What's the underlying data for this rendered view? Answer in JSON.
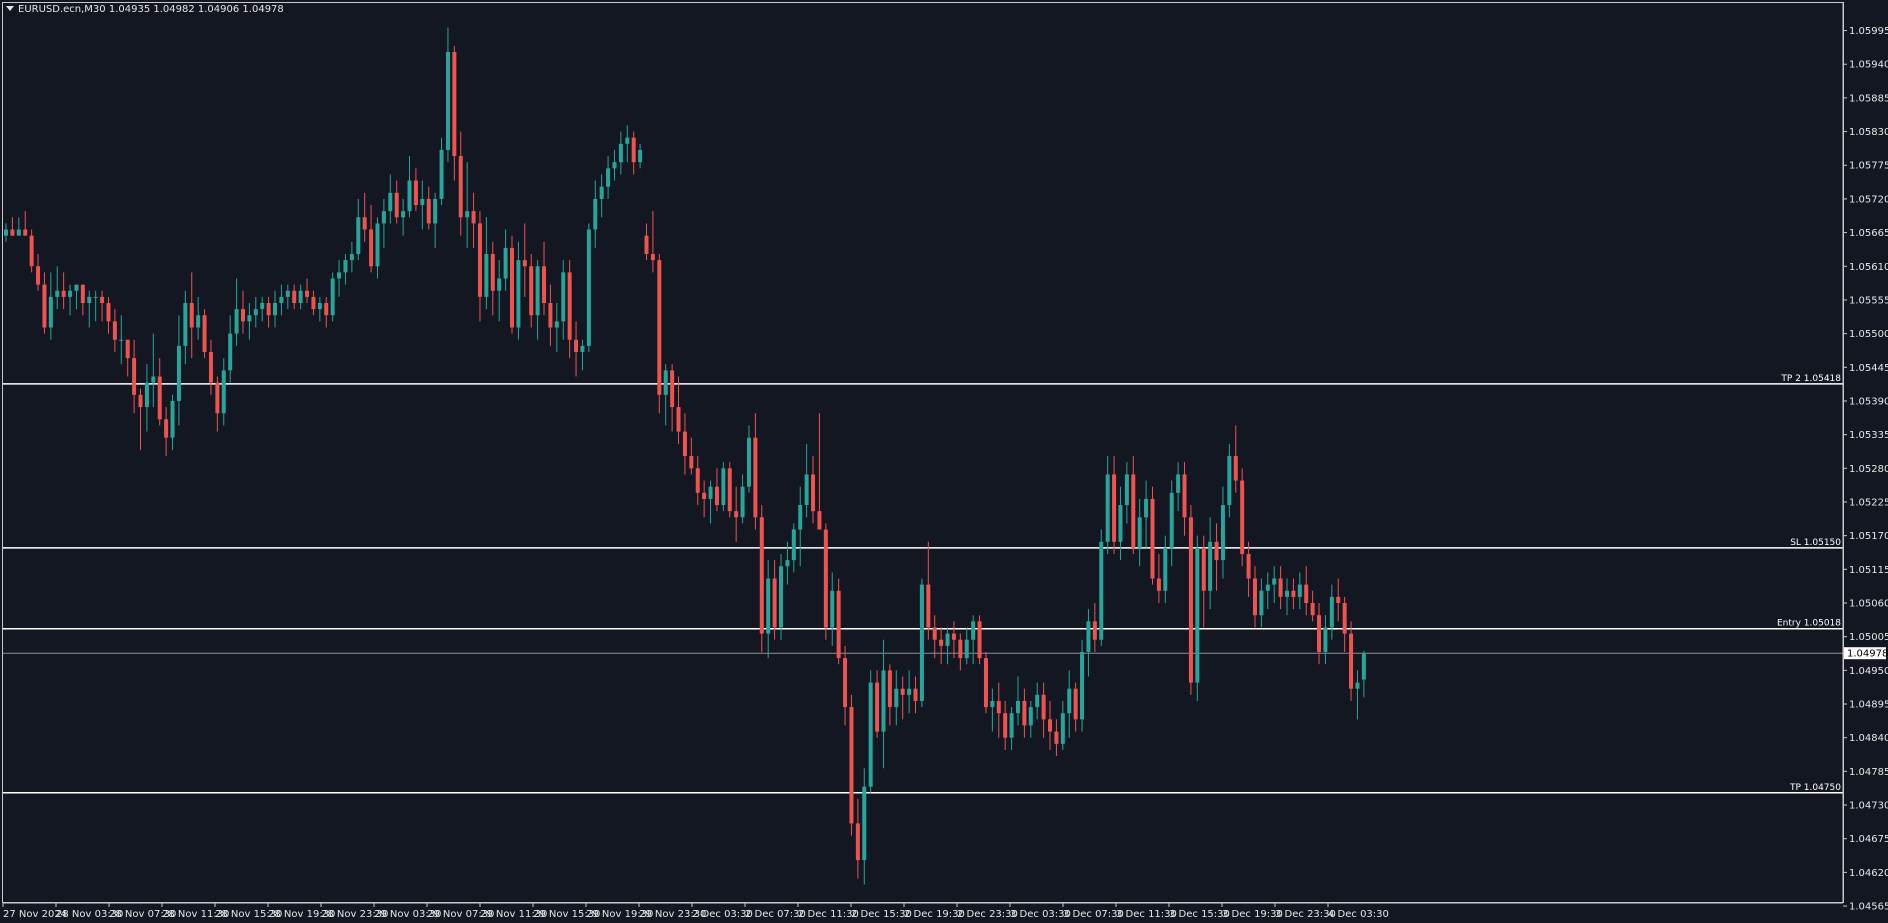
{
  "header": {
    "symbol_line": "EURUSD.ecn,M30  1.04935 1.04982 1.04906 1.04978"
  },
  "chart_data": {
    "type": "candlestick",
    "symbol": "EURUSD.ecn",
    "timeframe": "M30",
    "ohlc_readout": [
      "1.04935",
      "1.04982",
      "1.04906",
      "1.04978"
    ],
    "current_price": "1.04978",
    "ylim": [
      1.0457,
      1.0604
    ],
    "y_ticks": [
      "1.05995",
      "1.05940",
      "1.05885",
      "1.05830",
      "1.05775",
      "1.05720",
      "1.05665",
      "1.05610",
      "1.05555",
      "1.05500",
      "1.05445",
      "1.05390",
      "1.05335",
      "1.05280",
      "1.05225",
      "1.05170",
      "1.05115",
      "1.05060",
      "1.05005",
      "1.04950",
      "1.04895",
      "1.04840",
      "1.04785",
      "1.04730",
      "1.04675",
      "1.04620",
      "1.04565"
    ],
    "x_labels": [
      "27 Nov 2024",
      "28 Nov 03:30",
      "28 Nov 07:30",
      "28 Nov 11:30",
      "28 Nov 15:30",
      "28 Nov 19:30",
      "28 Nov 23:30",
      "29 Nov 03:30",
      "29 Nov 07:30",
      "29 Nov 11:30",
      "29 Nov 15:30",
      "29 Nov 19:30",
      "29 Nov 23:30",
      "2 Dec 03:30",
      "2 Dec 07:30",
      "2 Dec 11:30",
      "2 Dec 15:30",
      "2 Dec 19:30",
      "2 Dec 23:30",
      "3 Dec 03:30",
      "3 Dec 07:30",
      "3 Dec 11:30",
      "3 Dec 15:30",
      "3 Dec 19:30",
      "3 Dec 23:30",
      "4 Dec 03:30"
    ],
    "levels": [
      {
        "label": "TP 2 1.05418",
        "price": 1.05418
      },
      {
        "label": "SL 1.05150",
        "price": 1.0515
      },
      {
        "label": "Entry 1.05018",
        "price": 1.05018
      },
      {
        "label": "TP 1.04750",
        "price": 1.0475
      }
    ],
    "colors": {
      "background": "#131722",
      "bull": "#26a69a",
      "bear": "#ef5350",
      "axis": "#c8c8c8",
      "text": "#e6e6e6",
      "level_line": "#ffffff",
      "price_line": "#8a8f99"
    },
    "candles": [
      [
        1.0566,
        1.0568,
        1.0565,
        1.0567
      ],
      [
        1.0567,
        1.0569,
        1.0566,
        1.0566
      ],
      [
        1.0566,
        1.0569,
        1.0566,
        1.0567
      ],
      [
        1.0567,
        1.057,
        1.0566,
        1.0566
      ],
      [
        1.0566,
        1.0567,
        1.056,
        1.0561
      ],
      [
        1.0561,
        1.0563,
        1.0557,
        1.0558
      ],
      [
        1.0558,
        1.056,
        1.055,
        1.0551
      ],
      [
        1.0551,
        1.056,
        1.0549,
        1.0556
      ],
      [
        1.0556,
        1.0561,
        1.0554,
        1.0557
      ],
      [
        1.0557,
        1.056,
        1.0554,
        1.0556
      ],
      [
        1.0556,
        1.0558,
        1.0553,
        1.0557
      ],
      [
        1.0557,
        1.0558,
        1.0554,
        1.0558
      ],
      [
        1.0558,
        1.0558,
        1.0553,
        1.0555
      ],
      [
        1.0555,
        1.0557,
        1.0551,
        1.0556
      ],
      [
        1.0556,
        1.0557,
        1.0552,
        1.0556
      ],
      [
        1.0556,
        1.0557,
        1.0552,
        1.0555
      ],
      [
        1.0555,
        1.0556,
        1.055,
        1.0552
      ],
      [
        1.0552,
        1.0554,
        1.0547,
        1.0549
      ],
      [
        1.0549,
        1.0553,
        1.0545,
        1.0549
      ],
      [
        1.0549,
        1.0549,
        1.0543,
        1.0546
      ],
      [
        1.0546,
        1.0549,
        1.0537,
        1.054
      ],
      [
        1.054,
        1.0541,
        1.0531,
        1.0538
      ],
      [
        1.0538,
        1.0545,
        1.0534,
        1.0542
      ],
      [
        1.0542,
        1.055,
        1.0538,
        1.0543
      ],
      [
        1.0543,
        1.0546,
        1.0535,
        1.0536
      ],
      [
        1.0536,
        1.0538,
        1.053,
        1.0533
      ],
      [
        1.0533,
        1.054,
        1.0531,
        1.0539
      ],
      [
        1.0539,
        1.0553,
        1.0535,
        1.0548
      ],
      [
        1.0548,
        1.0557,
        1.0545,
        1.0555
      ],
      [
        1.0555,
        1.056,
        1.0546,
        1.0551
      ],
      [
        1.0551,
        1.0556,
        1.0549,
        1.0553
      ],
      [
        1.0553,
        1.0554,
        1.0546,
        1.0547
      ],
      [
        1.0547,
        1.0549,
        1.054,
        1.0542
      ],
      [
        1.0542,
        1.0543,
        1.0534,
        1.0537
      ],
      [
        1.0537,
        1.0546,
        1.0535,
        1.0544
      ],
      [
        1.0544,
        1.0553,
        1.0542,
        1.055
      ],
      [
        1.055,
        1.0559,
        1.0548,
        1.0554
      ],
      [
        1.0554,
        1.0557,
        1.055,
        1.0552
      ],
      [
        1.0552,
        1.0555,
        1.0549,
        1.0553
      ],
      [
        1.0553,
        1.0556,
        1.0551,
        1.0554
      ],
      [
        1.0554,
        1.0556,
        1.0552,
        1.0555
      ],
      [
        1.0555,
        1.0556,
        1.0551,
        1.0553
      ],
      [
        1.0553,
        1.0557,
        1.0551,
        1.0555
      ],
      [
        1.0555,
        1.0558,
        1.0553,
        1.0556
      ],
      [
        1.0556,
        1.0558,
        1.0554,
        1.0557
      ],
      [
        1.0557,
        1.0558,
        1.0554,
        1.0555
      ],
      [
        1.0555,
        1.0558,
        1.0554,
        1.0557
      ],
      [
        1.0557,
        1.0559,
        1.0555,
        1.0556
      ],
      [
        1.0556,
        1.0557,
        1.0553,
        1.0554
      ],
      [
        1.0554,
        1.0556,
        1.0552,
        1.0555
      ],
      [
        1.0555,
        1.0556,
        1.0551,
        1.0553
      ],
      [
        1.0553,
        1.056,
        1.0552,
        1.0559
      ],
      [
        1.0559,
        1.0562,
        1.0556,
        1.056
      ],
      [
        1.056,
        1.0563,
        1.0558,
        1.0562
      ],
      [
        1.0562,
        1.0565,
        1.056,
        1.0563
      ],
      [
        1.0563,
        1.0572,
        1.0562,
        1.0569
      ],
      [
        1.0569,
        1.0573,
        1.0565,
        1.0567
      ],
      [
        1.0567,
        1.0571,
        1.056,
        1.0561
      ],
      [
        1.0561,
        1.0569,
        1.0559,
        1.0568
      ],
      [
        1.0568,
        1.0572,
        1.0564,
        1.057
      ],
      [
        1.057,
        1.0576,
        1.0568,
        1.0573
      ],
      [
        1.0573,
        1.0575,
        1.0568,
        1.0569
      ],
      [
        1.0569,
        1.0572,
        1.0566,
        1.057
      ],
      [
        1.057,
        1.0579,
        1.0569,
        1.0575
      ],
      [
        1.0575,
        1.0577,
        1.057,
        1.0571
      ],
      [
        1.0571,
        1.0575,
        1.0567,
        1.0572
      ],
      [
        1.0572,
        1.0574,
        1.0567,
        1.0568
      ],
      [
        1.0568,
        1.0573,
        1.0564,
        1.0572
      ],
      [
        1.0572,
        1.0582,
        1.0571,
        1.058
      ],
      [
        1.058,
        1.06,
        1.0578,
        1.0596
      ],
      [
        1.0596,
        1.0597,
        1.0575,
        1.0579
      ],
      [
        1.0579,
        1.0583,
        1.0566,
        1.0569
      ],
      [
        1.0569,
        1.0578,
        1.0564,
        1.057
      ],
      [
        1.057,
        1.0573,
        1.0564,
        1.0568
      ],
      [
        1.0568,
        1.057,
        1.0552,
        1.0556
      ],
      [
        1.0556,
        1.0569,
        1.0554,
        1.0563
      ],
      [
        1.0563,
        1.0565,
        1.0553,
        1.0557
      ],
      [
        1.0557,
        1.0562,
        1.0552,
        1.0559
      ],
      [
        1.0559,
        1.0567,
        1.0557,
        1.0564
      ],
      [
        1.0564,
        1.0566,
        1.055,
        1.0551
      ],
      [
        1.0551,
        1.0565,
        1.0549,
        1.0562
      ],
      [
        1.0562,
        1.0568,
        1.0556,
        1.0561
      ],
      [
        1.0561,
        1.0563,
        1.0551,
        1.0553
      ],
      [
        1.0553,
        1.0562,
        1.0549,
        1.0561
      ],
      [
        1.0561,
        1.0565,
        1.0553,
        1.0555
      ],
      [
        1.0555,
        1.0558,
        1.0548,
        1.0551
      ],
      [
        1.0551,
        1.0555,
        1.0547,
        1.0552
      ],
      [
        1.0552,
        1.0562,
        1.0549,
        1.056
      ],
      [
        1.056,
        1.0562,
        1.0546,
        1.0549
      ],
      [
        1.0549,
        1.0552,
        1.0543,
        1.0547
      ],
      [
        1.0547,
        1.0549,
        1.0544,
        1.0548
      ],
      [
        1.0548,
        1.0568,
        1.0547,
        1.0567
      ],
      [
        1.0567,
        1.0575,
        1.0564,
        1.0572
      ],
      [
        1.0572,
        1.0576,
        1.0569,
        1.0574
      ],
      [
        1.0574,
        1.0579,
        1.0572,
        1.0577
      ],
      [
        1.0577,
        1.058,
        1.0575,
        1.0578
      ],
      [
        1.0578,
        1.0583,
        1.0576,
        1.0581
      ],
      [
        1.0581,
        1.0584,
        1.0578,
        1.0582
      ],
      [
        1.0582,
        1.0583,
        1.0576,
        1.0578
      ],
      [
        1.0578,
        1.0581,
        1.0577,
        1.058
      ],
      [
        1.0566,
        1.0568,
        1.0562,
        1.0563
      ],
      [
        1.0563,
        1.057,
        1.056,
        1.0562
      ],
      [
        1.0562,
        1.0563,
        1.0537,
        1.054
      ],
      [
        1.054,
        1.0545,
        1.0535,
        1.0544
      ],
      [
        1.0544,
        1.0545,
        1.0534,
        1.0538
      ],
      [
        1.0538,
        1.0543,
        1.0532,
        1.0534
      ],
      [
        1.0534,
        1.0537,
        1.0527,
        1.053
      ],
      [
        1.053,
        1.0533,
        1.0527,
        1.0528
      ],
      [
        1.0528,
        1.053,
        1.0522,
        1.0524
      ],
      [
        1.0524,
        1.0526,
        1.052,
        1.0523
      ],
      [
        1.0523,
        1.0526,
        1.0519,
        1.0525
      ],
      [
        1.0525,
        1.0528,
        1.0521,
        1.0522
      ],
      [
        1.0522,
        1.0529,
        1.0521,
        1.0528
      ],
      [
        1.0528,
        1.0529,
        1.052,
        1.0521
      ],
      [
        1.0521,
        1.0525,
        1.0516,
        1.052
      ],
      [
        1.052,
        1.0527,
        1.0519,
        1.0525
      ],
      [
        1.0525,
        1.0535,
        1.0524,
        1.0533
      ],
      [
        1.0533,
        1.0537,
        1.0518,
        1.052
      ],
      [
        1.052,
        1.0522,
        1.0498,
        1.0501
      ],
      [
        1.0501,
        1.0513,
        1.0497,
        1.051
      ],
      [
        1.051,
        1.0513,
        1.05,
        1.0502
      ],
      [
        1.0502,
        1.0514,
        1.05,
        1.0512
      ],
      [
        1.0512,
        1.0516,
        1.0509,
        1.0513
      ],
      [
        1.0513,
        1.0519,
        1.0511,
        1.0518
      ],
      [
        1.0518,
        1.0525,
        1.0512,
        1.0522
      ],
      [
        1.0522,
        1.0532,
        1.052,
        1.0527
      ],
      [
        1.0527,
        1.053,
        1.0519,
        1.0521
      ],
      [
        1.0521,
        1.0537,
        1.0518,
        1.0518
      ],
      [
        1.0518,
        1.0519,
        1.05,
        1.0502
      ],
      [
        1.0502,
        1.0511,
        1.0499,
        1.0508
      ],
      [
        1.0508,
        1.051,
        1.0496,
        1.0497
      ],
      [
        1.0497,
        1.0499,
        1.0486,
        1.0489
      ],
      [
        1.0489,
        1.0491,
        1.0468,
        1.047
      ],
      [
        1.047,
        1.0474,
        1.0461,
        1.0464
      ],
      [
        1.0464,
        1.0479,
        1.046,
        1.0476
      ],
      [
        1.0476,
        1.0495,
        1.0475,
        1.0493
      ],
      [
        1.0493,
        1.0495,
        1.0484,
        1.0485
      ],
      [
        1.0485,
        1.05,
        1.0479,
        1.0495
      ],
      [
        1.0495,
        1.0496,
        1.0486,
        1.0489
      ],
      [
        1.0489,
        1.0495,
        1.0486,
        1.0492
      ],
      [
        1.0492,
        1.0494,
        1.0487,
        1.0491
      ],
      [
        1.0491,
        1.0495,
        1.0488,
        1.0492
      ],
      [
        1.0492,
        1.0494,
        1.0488,
        1.049
      ],
      [
        1.049,
        1.051,
        1.0489,
        1.0509
      ],
      [
        1.0509,
        1.0516,
        1.05,
        1.0502
      ],
      [
        1.0502,
        1.0504,
        1.0497,
        1.05
      ],
      [
        1.05,
        1.0502,
        1.0496,
        1.0499
      ],
      [
        1.0499,
        1.0502,
        1.0496,
        1.0501
      ],
      [
        1.0501,
        1.0503,
        1.0497,
        1.05
      ],
      [
        1.05,
        1.0501,
        1.0495,
        1.0497
      ],
      [
        1.0497,
        1.0502,
        1.0496,
        1.05
      ],
      [
        1.05,
        1.0504,
        1.0496,
        1.0503
      ],
      [
        1.0503,
        1.0504,
        1.0496,
        1.0497
      ],
      [
        1.0497,
        1.0498,
        1.0488,
        1.0489
      ],
      [
        1.0489,
        1.0492,
        1.0485,
        1.049
      ],
      [
        1.049,
        1.0493,
        1.0484,
        1.0488
      ],
      [
        1.0488,
        1.049,
        1.0482,
        1.0484
      ],
      [
        1.0484,
        1.0489,
        1.0482,
        1.0488
      ],
      [
        1.0488,
        1.0494,
        1.0486,
        1.049
      ],
      [
        1.049,
        1.0492,
        1.0484,
        1.0486
      ],
      [
        1.0486,
        1.049,
        1.0484,
        1.0489
      ],
      [
        1.0489,
        1.0493,
        1.0487,
        1.0491
      ],
      [
        1.0491,
        1.0493,
        1.0484,
        1.0487
      ],
      [
        1.0487,
        1.049,
        1.0482,
        1.0485
      ],
      [
        1.0485,
        1.0487,
        1.0481,
        1.0483
      ],
      [
        1.0483,
        1.049,
        1.0482,
        1.0488
      ],
      [
        1.0488,
        1.0495,
        1.0484,
        1.0492
      ],
      [
        1.0492,
        1.0493,
        1.0485,
        1.0487
      ],
      [
        1.0487,
        1.05,
        1.0485,
        1.0498
      ],
      [
        1.0498,
        1.0505,
        1.0494,
        1.0503
      ],
      [
        1.0503,
        1.0506,
        1.0498,
        1.05
      ],
      [
        1.05,
        1.0518,
        1.0499,
        1.0516
      ],
      [
        1.0516,
        1.053,
        1.0514,
        1.0527
      ],
      [
        1.0527,
        1.053,
        1.0514,
        1.0516
      ],
      [
        1.0516,
        1.0525,
        1.0513,
        1.0522
      ],
      [
        1.0522,
        1.0529,
        1.0519,
        1.0527
      ],
      [
        1.0527,
        1.053,
        1.0514,
        1.0515
      ],
      [
        1.0515,
        1.0523,
        1.0512,
        1.052
      ],
      [
        1.052,
        1.0526,
        1.0515,
        1.0523
      ],
      [
        1.0523,
        1.0525,
        1.0509,
        1.051
      ],
      [
        1.051,
        1.0514,
        1.0506,
        1.0508
      ],
      [
        1.0508,
        1.0517,
        1.0506,
        1.0515
      ],
      [
        1.0515,
        1.0526,
        1.0512,
        1.0524
      ],
      [
        1.0524,
        1.0529,
        1.0521,
        1.0527
      ],
      [
        1.0527,
        1.0529,
        1.0517,
        1.052
      ],
      [
        1.052,
        1.0522,
        1.0491,
        1.0493
      ],
      [
        1.0493,
        1.0517,
        1.049,
        1.0515
      ],
      [
        1.0515,
        1.0517,
        1.0502,
        1.0508
      ],
      [
        1.0508,
        1.052,
        1.0505,
        1.0516
      ],
      [
        1.0516,
        1.0519,
        1.0508,
        1.0513
      ],
      [
        1.0513,
        1.0525,
        1.051,
        1.0522
      ],
      [
        1.0522,
        1.0532,
        1.052,
        1.053
      ],
      [
        1.053,
        1.0535,
        1.0524,
        1.0526
      ],
      [
        1.0526,
        1.0528,
        1.0512,
        1.0514
      ],
      [
        1.0514,
        1.0516,
        1.0507,
        1.051
      ],
      [
        1.051,
        1.0512,
        1.0502,
        1.0504
      ],
      [
        1.0504,
        1.051,
        1.0502,
        1.0508
      ],
      [
        1.0508,
        1.0511,
        1.0505,
        1.0509
      ],
      [
        1.0509,
        1.0512,
        1.0506,
        1.051
      ],
      [
        1.051,
        1.0512,
        1.0505,
        1.0507
      ],
      [
        1.0507,
        1.051,
        1.0504,
        1.0508
      ],
      [
        1.0508,
        1.051,
        1.0505,
        1.0507
      ],
      [
        1.0507,
        1.0511,
        1.0505,
        1.0509
      ],
      [
        1.0509,
        1.0512,
        1.0504,
        1.0506
      ],
      [
        1.0506,
        1.0508,
        1.0503,
        1.0504
      ],
      [
        1.0504,
        1.0506,
        1.0496,
        1.0498
      ],
      [
        1.0498,
        1.0504,
        1.0496,
        1.0502
      ],
      [
        1.0502,
        1.0509,
        1.05,
        1.0507
      ],
      [
        1.0507,
        1.051,
        1.0503,
        1.0506
      ],
      [
        1.0506,
        1.0507,
        1.0498,
        1.0501
      ],
      [
        1.0501,
        1.0503,
        1.049,
        1.0492
      ],
      [
        1.0492,
        1.0495,
        1.0487,
        1.0493
      ],
      [
        1.04935,
        1.04982,
        1.04906,
        1.04978
      ]
    ]
  }
}
